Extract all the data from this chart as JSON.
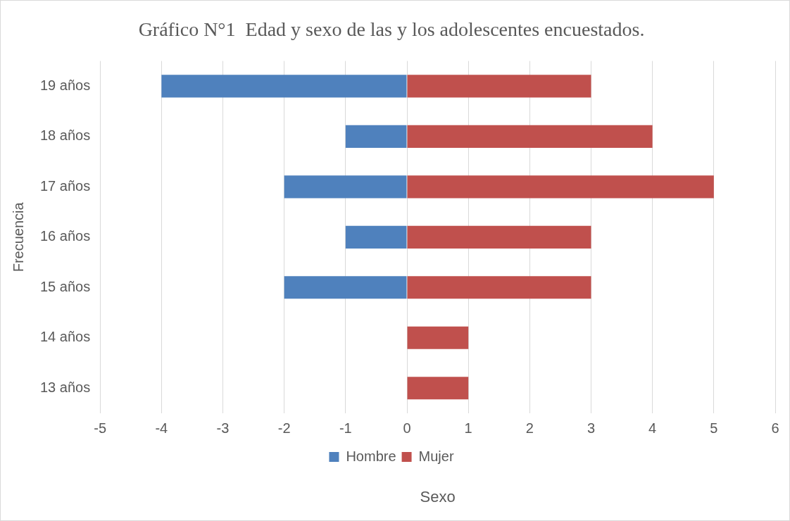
{
  "chart_data": {
    "type": "bar",
    "orientation": "horizontal",
    "stacked": true,
    "title": "Gráfico N°1  Edad y sexo de las y los adolescentes encuestados.",
    "xlabel": "Sexo",
    "ylabel": "Frecuencia",
    "categories": [
      "19 años",
      "18 años",
      "17 años",
      "16 años",
      "15 años",
      "14 años",
      "13 años"
    ],
    "series": [
      {
        "name": "Hombre",
        "color": "#4f81bd",
        "values": [
          -4,
          -1,
          -2,
          -1,
          -2,
          0,
          0
        ]
      },
      {
        "name": "Mujer",
        "color": "#c0504d",
        "values": [
          3,
          4,
          5,
          3,
          3,
          1,
          1
        ]
      }
    ],
    "xlim": [
      -5,
      6
    ],
    "xticks": [
      -5,
      -4,
      -3,
      -2,
      -1,
      0,
      1,
      2,
      3,
      4,
      5,
      6
    ],
    "grid": "x",
    "legend": "bottom"
  }
}
